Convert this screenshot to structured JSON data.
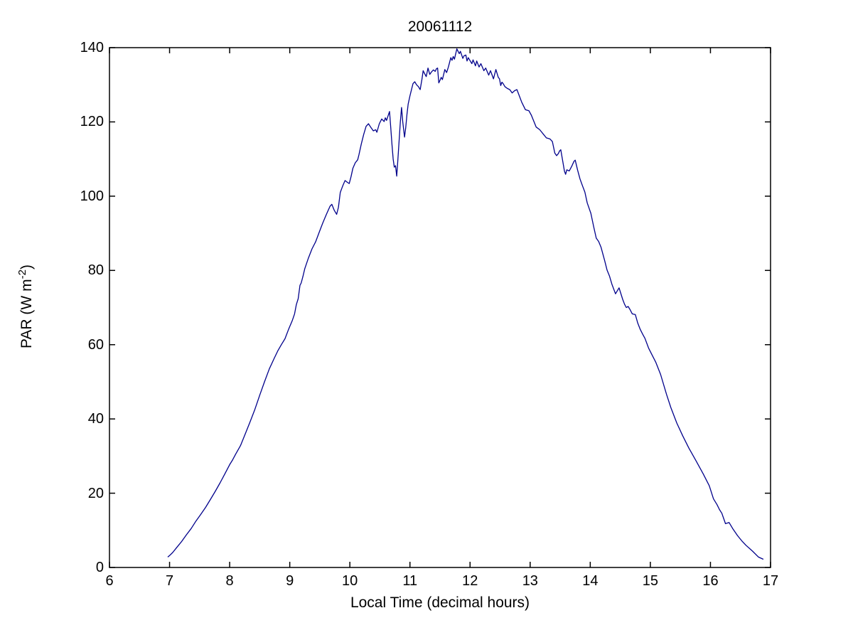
{
  "figure": {
    "title": "20061112",
    "xlabel": "Local Time (decimal hours)",
    "ylabel_prefix": "PAR (W m",
    "ylabel_superscript": "-2",
    "ylabel_suffix": ")"
  },
  "chart_data": {
    "type": "line",
    "title": "20061112",
    "xlabel": "Local Time (decimal hours)",
    "ylabel": "PAR (W m^-2)",
    "xlim": [
      6,
      17
    ],
    "ylim": [
      0,
      140
    ],
    "x_ticks": [
      6,
      7,
      8,
      9,
      10,
      11,
      12,
      13,
      14,
      15,
      16,
      17
    ],
    "y_ticks": [
      0,
      20,
      40,
      60,
      80,
      100,
      120,
      140
    ],
    "grid": false,
    "legend_position": "none",
    "line_color": "#00008B",
    "axis_color": "#000000",
    "background_color": "#FFFFFF",
    "series": [
      {
        "name": "PAR",
        "points": [
          [
            6.97,
            2.8
          ],
          [
            7.0,
            3.2
          ],
          [
            7.05,
            4.0
          ],
          [
            7.12,
            5.4
          ],
          [
            7.2,
            7.0
          ],
          [
            7.28,
            8.8
          ],
          [
            7.36,
            10.5
          ],
          [
            7.44,
            12.5
          ],
          [
            7.52,
            14.3
          ],
          [
            7.6,
            16.2
          ],
          [
            7.68,
            18.3
          ],
          [
            7.76,
            20.5
          ],
          [
            7.84,
            22.8
          ],
          [
            7.92,
            25.2
          ],
          [
            8.0,
            27.7
          ],
          [
            8.05,
            29.0
          ],
          [
            8.1,
            30.5
          ],
          [
            8.18,
            32.8
          ],
          [
            8.26,
            36.0
          ],
          [
            8.34,
            39.2
          ],
          [
            8.42,
            42.6
          ],
          [
            8.5,
            46.4
          ],
          [
            8.58,
            50.0
          ],
          [
            8.66,
            53.5
          ],
          [
            8.74,
            56.3
          ],
          [
            8.8,
            58.3
          ],
          [
            8.86,
            60.0
          ],
          [
            8.92,
            61.6
          ],
          [
            8.98,
            64.1
          ],
          [
            9.04,
            66.4
          ],
          [
            9.08,
            68.3
          ],
          [
            9.11,
            70.8
          ],
          [
            9.14,
            72.4
          ],
          [
            9.17,
            76.0
          ],
          [
            9.19,
            76.6
          ],
          [
            9.22,
            78.4
          ],
          [
            9.25,
            80.5
          ],
          [
            9.31,
            83.3
          ],
          [
            9.37,
            85.8
          ],
          [
            9.43,
            87.7
          ],
          [
            9.49,
            90.3
          ],
          [
            9.55,
            92.8
          ],
          [
            9.61,
            95.1
          ],
          [
            9.67,
            97.3
          ],
          [
            9.7,
            97.8
          ],
          [
            9.74,
            96.2
          ],
          [
            9.78,
            95.1
          ],
          [
            9.81,
            97.0
          ],
          [
            9.84,
            101.0
          ],
          [
            9.88,
            102.7
          ],
          [
            9.92,
            104.2
          ],
          [
            9.96,
            103.7
          ],
          [
            9.99,
            103.4
          ],
          [
            10.02,
            105.3
          ],
          [
            10.05,
            107.5
          ],
          [
            10.09,
            109.0
          ],
          [
            10.13,
            109.8
          ],
          [
            10.15,
            111.1
          ],
          [
            10.19,
            114.0
          ],
          [
            10.23,
            116.6
          ],
          [
            10.27,
            118.8
          ],
          [
            10.31,
            119.5
          ],
          [
            10.35,
            118.5
          ],
          [
            10.39,
            117.6
          ],
          [
            10.43,
            117.9
          ],
          [
            10.45,
            117.2
          ],
          [
            10.49,
            119.5
          ],
          [
            10.53,
            120.8
          ],
          [
            10.57,
            120.1
          ],
          [
            10.59,
            121.1
          ],
          [
            10.61,
            120.4
          ],
          [
            10.65,
            122.3
          ],
          [
            10.66,
            122.8
          ],
          [
            10.68,
            118.5
          ],
          [
            10.7,
            114.0
          ],
          [
            10.72,
            110.0
          ],
          [
            10.74,
            107.8
          ],
          [
            10.76,
            108.2
          ],
          [
            10.78,
            105.4
          ],
          [
            10.8,
            110.0
          ],
          [
            10.82,
            115.0
          ],
          [
            10.84,
            120.0
          ],
          [
            10.86,
            123.9
          ],
          [
            10.88,
            120.0
          ],
          [
            10.91,
            115.9
          ],
          [
            10.93,
            118.5
          ],
          [
            10.95,
            122.0
          ],
          [
            10.97,
            124.8
          ],
          [
            11.0,
            127.0
          ],
          [
            11.03,
            129.0
          ],
          [
            11.05,
            130.3
          ],
          [
            11.08,
            130.8
          ],
          [
            11.11,
            130.0
          ],
          [
            11.14,
            129.5
          ],
          [
            11.17,
            128.7
          ],
          [
            11.2,
            131.5
          ],
          [
            11.22,
            133.8
          ],
          [
            11.25,
            132.8
          ],
          [
            11.27,
            132.2
          ],
          [
            11.3,
            134.5
          ],
          [
            11.33,
            132.8
          ],
          [
            11.36,
            133.5
          ],
          [
            11.39,
            134.0
          ],
          [
            11.42,
            133.6
          ],
          [
            11.44,
            134.3
          ],
          [
            11.46,
            134.5
          ],
          [
            11.48,
            130.5
          ],
          [
            11.5,
            131.2
          ],
          [
            11.52,
            132.0
          ],
          [
            11.54,
            131.4
          ],
          [
            11.58,
            134.1
          ],
          [
            11.61,
            133.3
          ],
          [
            11.64,
            134.8
          ],
          [
            11.68,
            137.3
          ],
          [
            11.7,
            136.6
          ],
          [
            11.72,
            137.6
          ],
          [
            11.74,
            136.9
          ],
          [
            11.78,
            139.7
          ],
          [
            11.8,
            139.0
          ],
          [
            11.82,
            138.4
          ],
          [
            11.84,
            139.0
          ],
          [
            11.88,
            137.1
          ],
          [
            11.9,
            137.8
          ],
          [
            11.93,
            138.0
          ],
          [
            11.95,
            136.4
          ],
          [
            11.97,
            137.3
          ],
          [
            12.0,
            136.5
          ],
          [
            12.03,
            135.7
          ],
          [
            12.05,
            136.7
          ],
          [
            12.09,
            135.1
          ],
          [
            12.11,
            136.4
          ],
          [
            12.15,
            134.8
          ],
          [
            12.18,
            135.7
          ],
          [
            12.23,
            133.8
          ],
          [
            12.26,
            134.5
          ],
          [
            12.31,
            132.6
          ],
          [
            12.34,
            133.8
          ],
          [
            12.39,
            131.6
          ],
          [
            12.43,
            134.1
          ],
          [
            12.47,
            132.0
          ],
          [
            12.49,
            131.6
          ],
          [
            12.51,
            129.8
          ],
          [
            12.53,
            130.7
          ],
          [
            12.55,
            130.3
          ],
          [
            12.58,
            129.5
          ],
          [
            12.62,
            129.0
          ],
          [
            12.66,
            128.7
          ],
          [
            12.7,
            127.8
          ],
          [
            12.74,
            128.4
          ],
          [
            12.78,
            128.7
          ],
          [
            12.82,
            127.0
          ],
          [
            12.86,
            125.3
          ],
          [
            12.92,
            123.3
          ],
          [
            12.98,
            123.0
          ],
          [
            13.02,
            121.8
          ],
          [
            13.06,
            120.2
          ],
          [
            13.1,
            118.6
          ],
          [
            13.16,
            117.9
          ],
          [
            13.22,
            116.7
          ],
          [
            13.27,
            115.7
          ],
          [
            13.33,
            115.4
          ],
          [
            13.37,
            114.7
          ],
          [
            13.41,
            111.6
          ],
          [
            13.44,
            110.9
          ],
          [
            13.47,
            111.5
          ],
          [
            13.49,
            112.2
          ],
          [
            13.51,
            112.5
          ],
          [
            13.55,
            108.7
          ],
          [
            13.57,
            106.8
          ],
          [
            13.59,
            105.9
          ],
          [
            13.61,
            107.1
          ],
          [
            13.65,
            106.8
          ],
          [
            13.69,
            108.0
          ],
          [
            13.73,
            109.4
          ],
          [
            13.75,
            109.7
          ],
          [
            13.79,
            107.0
          ],
          [
            13.83,
            104.6
          ],
          [
            13.87,
            102.8
          ],
          [
            13.91,
            101.1
          ],
          [
            13.95,
            98.2
          ],
          [
            14.01,
            95.4
          ],
          [
            14.06,
            91.6
          ],
          [
            14.1,
            88.7
          ],
          [
            14.14,
            87.8
          ],
          [
            14.18,
            86.2
          ],
          [
            14.24,
            82.6
          ],
          [
            14.28,
            80.1
          ],
          [
            14.32,
            78.5
          ],
          [
            14.36,
            76.3
          ],
          [
            14.42,
            73.7
          ],
          [
            14.46,
            74.8
          ],
          [
            14.48,
            75.3
          ],
          [
            14.54,
            72.2
          ],
          [
            14.57,
            70.9
          ],
          [
            14.6,
            70.0
          ],
          [
            14.63,
            70.3
          ],
          [
            14.66,
            69.5
          ],
          [
            14.7,
            68.3
          ],
          [
            14.75,
            68.1
          ],
          [
            14.79,
            65.8
          ],
          [
            14.83,
            64.2
          ],
          [
            14.87,
            62.9
          ],
          [
            14.91,
            61.7
          ],
          [
            14.97,
            59.1
          ],
          [
            15.03,
            57.2
          ],
          [
            15.09,
            55.3
          ],
          [
            15.17,
            52.0
          ],
          [
            15.27,
            46.6
          ],
          [
            15.34,
            43.1
          ],
          [
            15.44,
            38.9
          ],
          [
            15.54,
            35.4
          ],
          [
            15.64,
            32.2
          ],
          [
            15.76,
            28.7
          ],
          [
            15.88,
            25.2
          ],
          [
            15.98,
            22.0
          ],
          [
            16.05,
            18.5
          ],
          [
            16.11,
            16.9
          ],
          [
            16.15,
            15.6
          ],
          [
            16.19,
            14.6
          ],
          [
            16.25,
            11.8
          ],
          [
            16.31,
            12.1
          ],
          [
            16.37,
            10.5
          ],
          [
            16.45,
            8.6
          ],
          [
            16.52,
            7.2
          ],
          [
            16.59,
            6.0
          ],
          [
            16.7,
            4.4
          ],
          [
            16.8,
            2.8
          ],
          [
            16.88,
            2.2
          ]
        ]
      }
    ]
  }
}
